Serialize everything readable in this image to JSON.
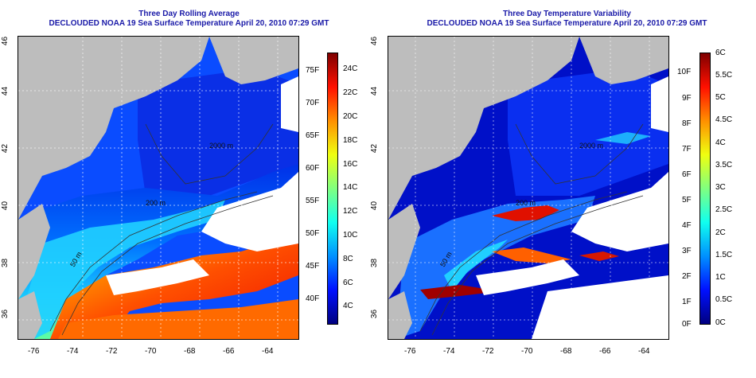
{
  "left_panel": {
    "title_line1": "Three Day Rolling Average",
    "title_line2": "DECLOUDED NOAA 19 Sea Surface Temperature April 20, 2010 07:29 GMT",
    "lon_ticks": [
      "-76",
      "-74",
      "-72",
      "-70",
      "-68",
      "-66",
      "-64"
    ],
    "lat_ticks": [
      "46",
      "44",
      "42",
      "40",
      "38",
      "36"
    ],
    "contour_labels": [
      "2000 m",
      "200 m",
      "50 m"
    ],
    "colorbar_f_labels": [
      "75F",
      "70F",
      "65F",
      "60F",
      "55F",
      "50F",
      "45F",
      "40F"
    ],
    "colorbar_c_labels": [
      "24C",
      "22C",
      "20C",
      "18C",
      "16C",
      "14C",
      "12C",
      "10C",
      "8C",
      "6C",
      "4C"
    ]
  },
  "right_panel": {
    "title_line1": "Three Day Temperature Variability",
    "title_line2": "DECLOUDED NOAA 19 Sea Surface Temperature April 20, 2010 07:29 GMT",
    "lon_ticks": [
      "-76",
      "-74",
      "-72",
      "-70",
      "-68",
      "-66",
      "-64"
    ],
    "lat_ticks": [
      "46",
      "44",
      "42",
      "40",
      "38",
      "36"
    ],
    "contour_labels": [
      "2000 m",
      "200 m",
      "50 m"
    ],
    "colorbar_f_labels": [
      "10F",
      "9F",
      "8F",
      "7F",
      "6F",
      "5F",
      "4F",
      "3F",
      "2F",
      "1F",
      "0F"
    ],
    "colorbar_c_labels": [
      "6C",
      "5.5C",
      "5C",
      "4.5C",
      "4C",
      "3.5C",
      "3C",
      "2.5C",
      "2C",
      "1.5C",
      "1C",
      "0.5C",
      "0C"
    ]
  },
  "colors": {
    "land": "#bdbdbd",
    "cloud": "#ffffff",
    "title": "#1a1aa8",
    "sst_scale": [
      "#00007f",
      "#0010ff",
      "#0090ff",
      "#10ffef",
      "#80ff80",
      "#efff10",
      "#ff9000",
      "#ff1000",
      "#7f0000"
    ],
    "var_scale": [
      "#00007f",
      "#0010ff",
      "#0090ff",
      "#10ffef",
      "#80ff80",
      "#efff10",
      "#ff9000",
      "#ff1000",
      "#7f0000"
    ]
  }
}
